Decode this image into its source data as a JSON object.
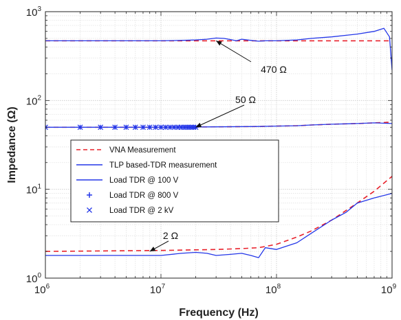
{
  "chart_data": {
    "type": "line",
    "xlabel": "Frequency (Hz)",
    "ylabel": "Impedance (Ω)",
    "x_scale": "log",
    "y_scale": "log",
    "xlim": [
      1000000,
      1000000000
    ],
    "ylim": [
      1,
      1000
    ],
    "grid": true,
    "legend_position": "lower-left",
    "x_ticks": [
      {
        "base": "10",
        "exp": "6"
      },
      {
        "base": "10",
        "exp": "7"
      },
      {
        "base": "10",
        "exp": "8"
      },
      {
        "base": "10",
        "exp": "9"
      }
    ],
    "y_ticks": [
      {
        "base": "10",
        "exp": "0"
      },
      {
        "base": "10",
        "exp": "1"
      },
      {
        "base": "10",
        "exp": "2"
      },
      {
        "base": "10",
        "exp": "3"
      }
    ],
    "legend": [
      {
        "label": "VNA Measurement",
        "style": "dashed",
        "color": "#e8202a"
      },
      {
        "label": "TLP based-TDR measurement",
        "style": "solid",
        "color": "#2235e8"
      },
      {
        "label": "Load TDR @ 100 V",
        "style": "solid",
        "color": "#2235e8"
      },
      {
        "label": "Load TDR @ 800 V",
        "style": "plus",
        "color": "#2235e8"
      },
      {
        "label": "Load TDR @ 2 kV",
        "style": "cross",
        "color": "#2235e8"
      }
    ],
    "annotations": [
      {
        "text": "470 Ω",
        "x": 30000000,
        "y": 470
      },
      {
        "text": "50 Ω",
        "x": 20000000,
        "y": 50
      },
      {
        "text": "2 Ω",
        "x": 8000000,
        "y": 2
      }
    ],
    "series": [
      {
        "name": "VNA Measurement",
        "color": "#e8202a",
        "x": [
          1000000,
          10000000,
          50000000,
          100000000,
          200000000,
          300000000,
          500000000,
          700000000,
          1000000000
        ],
        "y": [
          470,
          470,
          470,
          470,
          470,
          470,
          470,
          470,
          470
        ]
      },
      {
        "name": "VNA Measurement",
        "color": "#e8202a",
        "x": [
          1000000,
          10000000,
          30000000,
          70000000,
          100000000,
          150000000,
          200000000,
          300000000,
          500000000,
          700000000,
          1000000000
        ],
        "y": [
          50,
          50,
          50.5,
          51,
          51.5,
          52,
          53,
          54,
          55,
          56,
          57
        ]
      },
      {
        "name": "VNA Measurement",
        "color": "#e8202a",
        "x": [
          1000000,
          10000000,
          30000000,
          50000000,
          70000000,
          100000000,
          150000000,
          200000000,
          300000000,
          500000000,
          700000000,
          1000000000
        ],
        "y": [
          2.0,
          2.05,
          2.1,
          2.15,
          2.2,
          2.4,
          2.9,
          3.4,
          4.5,
          7.0,
          9.5,
          14
        ]
      },
      {
        "name": "TLP based-TDR measurement",
        "color": "#2235e8",
        "x": [
          1000000,
          10000000,
          15000000,
          20000000,
          25000000,
          30000000,
          35000000,
          40000000,
          45000000,
          50000000,
          60000000,
          70000000,
          80000000,
          100000000,
          150000000,
          200000000,
          300000000,
          500000000,
          700000000,
          850000000,
          950000000,
          1000000000
        ],
        "y": [
          470,
          470,
          475,
          480,
          490,
          505,
          500,
          485,
          470,
          490,
          475,
          465,
          470,
          470,
          480,
          500,
          520,
          560,
          600,
          650,
          520,
          220
        ]
      },
      {
        "name": "Load TDR @ 100 V",
        "color": "#2235e8",
        "x": [
          1000000,
          10000000,
          30000000,
          70000000,
          100000000,
          150000000,
          200000000,
          300000000,
          500000000,
          700000000,
          1000000000
        ],
        "y": [
          50,
          50,
          50.5,
          51,
          51.5,
          52,
          53,
          54,
          55,
          56,
          55
        ]
      },
      {
        "name": "Load TDR @ 800 V",
        "color": "#2235e8",
        "x": [
          1000000,
          2000000,
          3000000,
          4000000,
          5000000,
          6000000,
          7000000,
          8000000,
          9000000,
          10000000,
          11000000,
          12000000,
          13000000,
          14000000,
          15000000,
          16000000,
          17000000,
          18000000,
          19000000,
          20000000
        ],
        "y": [
          50,
          50,
          50,
          50,
          50,
          50,
          50,
          50,
          50,
          50,
          50,
          50,
          50,
          50,
          50,
          50,
          50,
          50,
          50,
          50
        ]
      },
      {
        "name": "Load TDR @ 2 kV",
        "color": "#2235e8",
        "x": [
          1000000,
          2000000,
          3000000,
          4000000,
          5000000,
          6000000,
          7000000,
          8000000,
          9000000,
          10000000,
          11000000,
          12000000,
          13000000,
          14000000,
          15000000,
          16000000,
          17000000,
          18000000,
          19000000,
          20000000
        ],
        "y": [
          50,
          50,
          50,
          50,
          50,
          50,
          50,
          50,
          50,
          50,
          50,
          50,
          50,
          50,
          50,
          50,
          50,
          50,
          50,
          50
        ]
      },
      {
        "name": "TLP based-TDR measurement",
        "color": "#2235e8",
        "x": [
          1000000,
          10000000,
          15000000,
          20000000,
          25000000,
          30000000,
          40000000,
          50000000,
          60000000,
          70000000,
          80000000,
          100000000,
          150000000,
          200000000,
          300000000,
          400000000,
          500000000,
          700000000,
          1000000000
        ],
        "y": [
          1.8,
          1.8,
          1.9,
          1.95,
          1.9,
          1.8,
          1.85,
          1.9,
          1.8,
          1.7,
          2.2,
          2.1,
          2.5,
          3.2,
          4.5,
          5.5,
          7.0,
          8.0,
          9.0
        ]
      }
    ]
  }
}
